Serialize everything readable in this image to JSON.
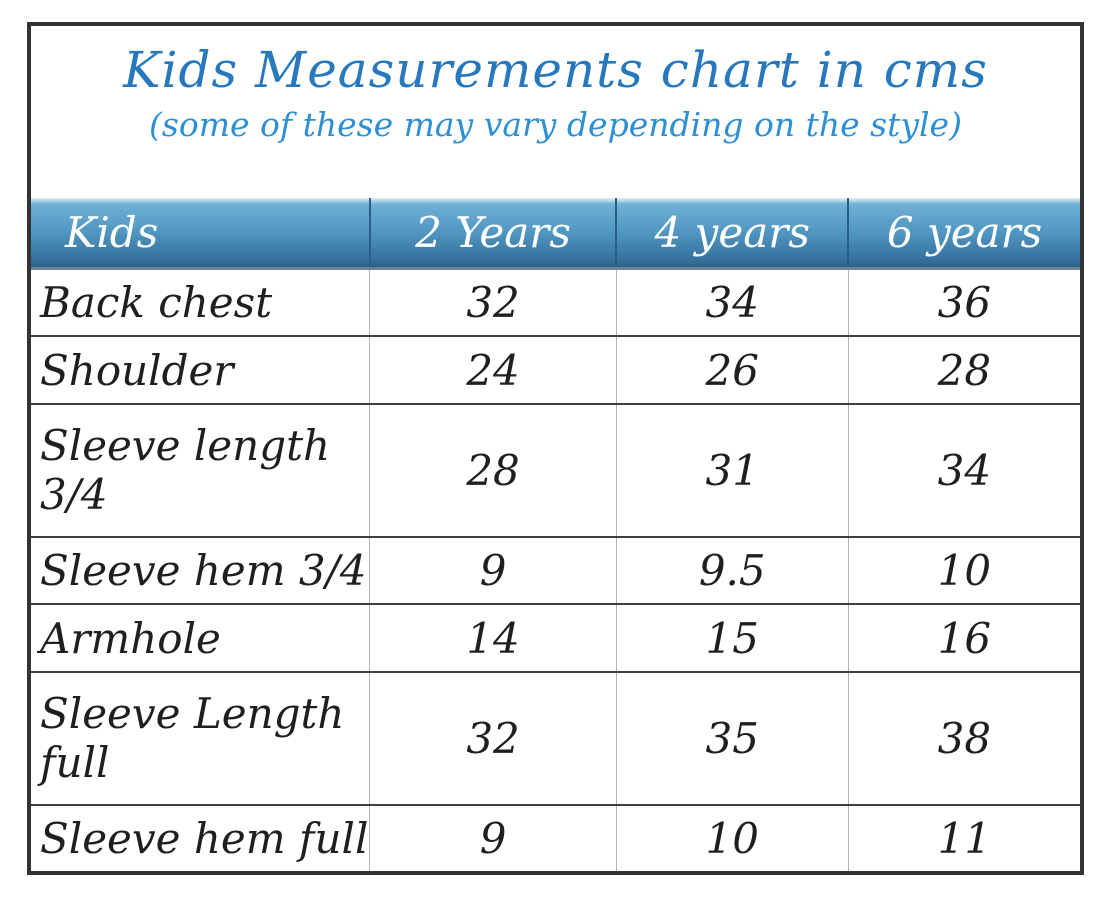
{
  "chart_data": {
    "type": "table",
    "title": "Kids Measurements chart in cms",
    "subtitle": "(some of these may vary depending on the style)",
    "units": "cms",
    "columns": [
      "Kids",
      "2 Years",
      "4 years",
      "6 years"
    ],
    "rows": [
      {
        "label": "Back chest",
        "values": [
          "32",
          "34",
          "36"
        ]
      },
      {
        "label": "Shoulder",
        "values": [
          "24",
          "26",
          "28"
        ]
      },
      {
        "label": "Sleeve length 3/4",
        "values": [
          "28",
          "31",
          "34"
        ]
      },
      {
        "label": "Sleeve hem 3/4",
        "values": [
          "9",
          "9.5",
          "10"
        ]
      },
      {
        "label": "Armhole",
        "values": [
          "14",
          "15",
          "16"
        ]
      },
      {
        "label": "Sleeve Length full",
        "values": [
          "32",
          "35",
          "38"
        ]
      },
      {
        "label": "Sleeve hem full",
        "values": [
          "9",
          "10",
          "11"
        ]
      }
    ],
    "colors": {
      "title_blue": "#2878be",
      "subtitle_blue": "#2e8fd4",
      "header_gradient_top": "#6fb0d6",
      "header_gradient_bottom": "#2e6d97",
      "outer_border": "#333333",
      "row_separator": "#3e3e3e",
      "column_separator": "#b3b3b3",
      "header_text": "#ffffff",
      "body_text": "#1f1f1f"
    },
    "layout": {
      "grid": "on",
      "header_position": "top"
    }
  }
}
